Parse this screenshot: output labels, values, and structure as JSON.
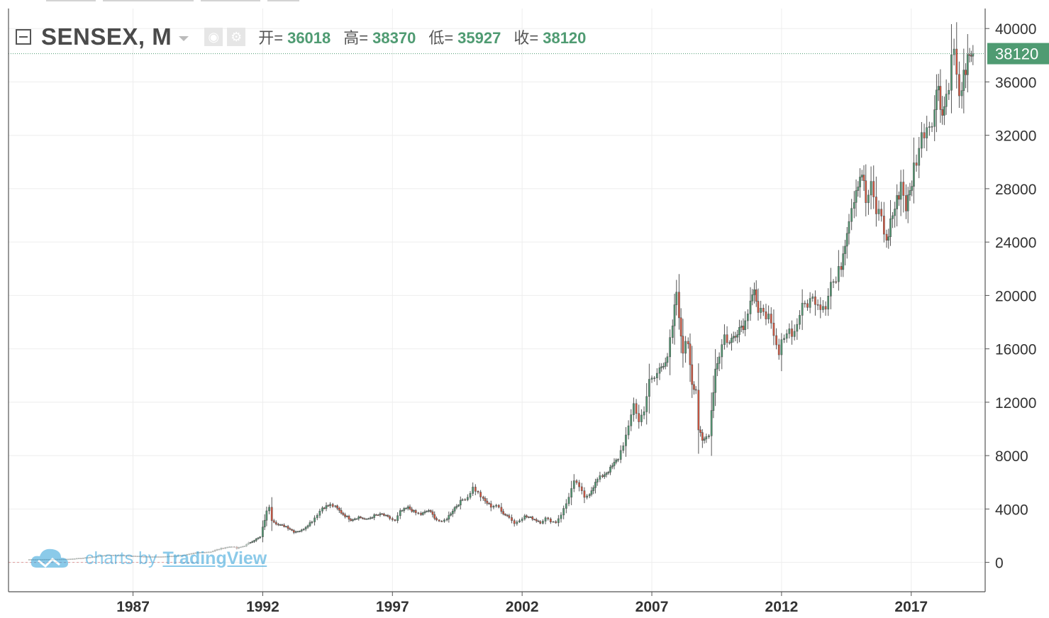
{
  "legend": {
    "symbol": "SENSEX, M",
    "open_label": "开=",
    "open_value": "36018",
    "high_label": "高=",
    "high_value": "38370",
    "low_label": "低=",
    "low_value": "35927",
    "close_label": "收=",
    "close_value": "38120"
  },
  "last_price_tag": "38120",
  "watermark": {
    "prefix": "charts by",
    "brand": "TradingView"
  },
  "colors": {
    "up": "#4f9b72",
    "down": "#e0533a",
    "last_price_bg": "#4f9b72",
    "grid": "#eeeeee",
    "watermark": "#2e9fd8"
  },
  "chart_data": {
    "type": "candlestick",
    "title": "SENSEX, M",
    "interval": "monthly",
    "y_ticks": [
      0,
      4000,
      8000,
      12000,
      16000,
      20000,
      24000,
      28000,
      32000,
      36000,
      40000
    ],
    "x_ticks": [
      "1987",
      "1992",
      "1997",
      "2002",
      "2007",
      "2012",
      "2017"
    ],
    "ylim": [
      -2200,
      41500
    ],
    "xlim": [
      1982.2,
      2019.85
    ],
    "grid": true,
    "last_close": 38120,
    "series": [
      {
        "name": "SENSEX",
        "monthly_close": [
          [
            1983.0,
            220
          ],
          [
            1983.5,
            225
          ],
          [
            1984.0,
            240
          ],
          [
            1984.5,
            250
          ],
          [
            1985.0,
            320
          ],
          [
            1985.5,
            420
          ],
          [
            1986.0,
            560
          ],
          [
            1986.5,
            520
          ],
          [
            1987.0,
            480
          ],
          [
            1987.5,
            440
          ],
          [
            1988.0,
            420
          ],
          [
            1988.5,
            470
          ],
          [
            1989.0,
            560
          ],
          [
            1989.5,
            740
          ],
          [
            1990.0,
            800
          ],
          [
            1990.4,
            1050
          ],
          [
            1990.8,
            1200
          ],
          [
            1991.0,
            1050
          ],
          [
            1991.3,
            1250
          ],
          [
            1991.6,
            1600
          ],
          [
            1991.9,
            1900
          ],
          [
            1992.0,
            2600
          ],
          [
            1992.15,
            3800
          ],
          [
            1992.25,
            4200
          ],
          [
            1992.35,
            3200
          ],
          [
            1992.6,
            2800
          ],
          [
            1992.9,
            2700
          ],
          [
            1993.2,
            2300
          ],
          [
            1993.5,
            2400
          ],
          [
            1993.9,
            3100
          ],
          [
            1994.1,
            3600
          ],
          [
            1994.3,
            4100
          ],
          [
            1994.6,
            4300
          ],
          [
            1994.8,
            4150
          ],
          [
            1995.1,
            3600
          ],
          [
            1995.4,
            3200
          ],
          [
            1995.7,
            3400
          ],
          [
            1996.0,
            3200
          ],
          [
            1996.3,
            3500
          ],
          [
            1996.6,
            3600
          ],
          [
            1996.9,
            3300
          ],
          [
            1997.1,
            3100
          ],
          [
            1997.3,
            3800
          ],
          [
            1997.6,
            4100
          ],
          [
            1997.9,
            3700
          ],
          [
            1998.1,
            3600
          ],
          [
            1998.4,
            3900
          ],
          [
            1998.7,
            3200
          ],
          [
            1998.9,
            3000
          ],
          [
            1999.1,
            3300
          ],
          [
            1999.4,
            4100
          ],
          [
            1999.7,
            4700
          ],
          [
            1999.9,
            4900
          ],
          [
            2000.1,
            5600
          ],
          [
            2000.3,
            5200
          ],
          [
            2000.5,
            4700
          ],
          [
            2000.8,
            4200
          ],
          [
            2001.0,
            4300
          ],
          [
            2001.2,
            3800
          ],
          [
            2001.5,
            3400
          ],
          [
            2001.7,
            2900
          ],
          [
            2001.9,
            3200
          ],
          [
            2002.1,
            3450
          ],
          [
            2002.4,
            3300
          ],
          [
            2002.7,
            3000
          ],
          [
            2002.9,
            3300
          ],
          [
            2003.1,
            3100
          ],
          [
            2003.3,
            3000
          ],
          [
            2003.5,
            3600
          ],
          [
            2003.7,
            4400
          ],
          [
            2003.9,
            5500
          ],
          [
            2004.0,
            6000
          ],
          [
            2004.2,
            5700
          ],
          [
            2004.4,
            4800
          ],
          [
            2004.6,
            5200
          ],
          [
            2004.9,
            6200
          ],
          [
            2005.1,
            6500
          ],
          [
            2005.4,
            7000
          ],
          [
            2005.7,
            7800
          ],
          [
            2005.9,
            8900
          ],
          [
            2006.1,
            10000
          ],
          [
            2006.3,
            12000
          ],
          [
            2006.5,
            10500
          ],
          [
            2006.7,
            11500
          ],
          [
            2006.9,
            13500
          ],
          [
            2007.1,
            13800
          ],
          [
            2007.3,
            14500
          ],
          [
            2007.6,
            15500
          ],
          [
            2007.8,
            17500
          ],
          [
            2007.95,
            20300
          ],
          [
            2008.05,
            18000
          ],
          [
            2008.2,
            16000
          ],
          [
            2008.4,
            16500
          ],
          [
            2008.55,
            13500
          ],
          [
            2008.7,
            13000
          ],
          [
            2008.8,
            10000
          ],
          [
            2008.95,
            9000
          ],
          [
            2009.1,
            9400
          ],
          [
            2009.2,
            9700
          ],
          [
            2009.3,
            11400
          ],
          [
            2009.45,
            14500
          ],
          [
            2009.6,
            15600
          ],
          [
            2009.8,
            17000
          ],
          [
            2010.0,
            16400
          ],
          [
            2010.3,
            17500
          ],
          [
            2010.6,
            18000
          ],
          [
            2010.8,
            20000
          ],
          [
            2010.95,
            20500
          ],
          [
            2011.1,
            18300
          ],
          [
            2011.3,
            19100
          ],
          [
            2011.5,
            18300
          ],
          [
            2011.7,
            16700
          ],
          [
            2011.9,
            15500
          ],
          [
            2012.1,
            17200
          ],
          [
            2012.3,
            17400
          ],
          [
            2012.5,
            17200
          ],
          [
            2012.7,
            18700
          ],
          [
            2012.9,
            19300
          ],
          [
            2013.1,
            19600
          ],
          [
            2013.3,
            19800
          ],
          [
            2013.5,
            19300
          ],
          [
            2013.7,
            19400
          ],
          [
            2013.9,
            21000
          ],
          [
            2014.1,
            21000
          ],
          [
            2014.3,
            22400
          ],
          [
            2014.45,
            24200
          ],
          [
            2014.6,
            26000
          ],
          [
            2014.8,
            27500
          ],
          [
            2014.95,
            28700
          ],
          [
            2015.1,
            29300
          ],
          [
            2015.25,
            27000
          ],
          [
            2015.45,
            28000
          ],
          [
            2015.65,
            26300
          ],
          [
            2015.85,
            26000
          ],
          [
            2016.05,
            23800
          ],
          [
            2016.2,
            25600
          ],
          [
            2016.45,
            27000
          ],
          [
            2016.6,
            28500
          ],
          [
            2016.8,
            26700
          ],
          [
            2016.95,
            27600
          ],
          [
            2017.1,
            29600
          ],
          [
            2017.3,
            31100
          ],
          [
            2017.5,
            32500
          ],
          [
            2017.7,
            33000
          ],
          [
            2017.9,
            34000
          ],
          [
            2018.05,
            36000
          ],
          [
            2018.2,
            33500
          ],
          [
            2018.35,
            35000
          ],
          [
            2018.55,
            37500
          ],
          [
            2018.65,
            38600
          ],
          [
            2018.75,
            36200
          ],
          [
            2018.85,
            34500
          ],
          [
            2018.95,
            36100
          ],
          [
            2019.1,
            36000
          ],
          [
            2019.25,
            38500
          ],
          [
            2019.38,
            38120
          ]
        ]
      }
    ]
  }
}
